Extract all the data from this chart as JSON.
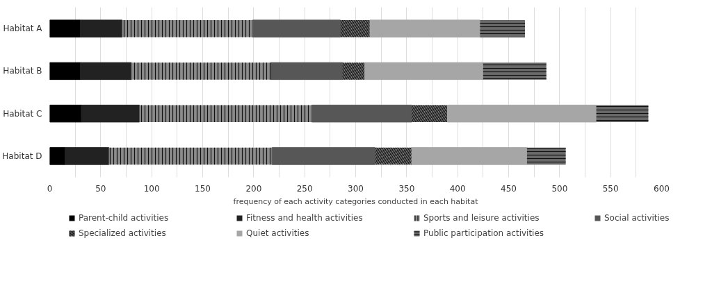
{
  "chart_data": {
    "type": "bar",
    "orientation": "horizontal",
    "stacked": true,
    "categories": [
      "Habitat A",
      "Habitat B",
      "Habitat C",
      "Habitat D"
    ],
    "xlabel": "frequency of each activity categories conducted in each habitat",
    "series": [
      {
        "name": "Parent-child activities",
        "color": "#000000",
        "values": [
          30,
          30,
          31,
          15
        ]
      },
      {
        "name": "Fitness and health activities",
        "color": "#222222",
        "values": [
          41,
          50,
          57,
          43
        ]
      },
      {
        "name": "Sports and leisure activities",
        "color": "#8c8c8c",
        "values": [
          128,
          137,
          169,
          160
        ]
      },
      {
        "name": "Social activities",
        "color": "#575757",
        "values": [
          86,
          70,
          98,
          101
        ]
      },
      {
        "name": "Specialized activities",
        "color": "#7a7a7a",
        "values": [
          29,
          22,
          35,
          36
        ]
      },
      {
        "name": "Quiet activities",
        "color": "#a6a6a6",
        "values": [
          108,
          116,
          146,
          113
        ]
      },
      {
        "name": "Public participation activities",
        "color": "#6a6a6a",
        "values": [
          44,
          62,
          51,
          38
        ]
      }
    ],
    "xlim": [
      0,
      600
    ],
    "xticks": [
      0,
      {
        "value": 25,
        "label": null
      },
      50,
      {
        "value": 75,
        "label": null
      },
      100,
      {
        "value": 125,
        "label": null
      },
      150,
      {
        "value": 175,
        "label": null
      },
      200,
      {
        "value": 225,
        "label": null
      },
      250,
      {
        "value": 275,
        "label": null
      },
      300,
      {
        "value": 325,
        "label": null
      },
      350,
      {
        "value": 375,
        "label": null
      },
      400,
      {
        "value": 425,
        "label": null
      },
      450,
      {
        "value": 475,
        "label": null
      },
      500,
      {
        "value": 525,
        "label": null
      },
      550,
      {
        "value": 575,
        "label": null
      },
      600
    ],
    "grid": "x",
    "legend": "bottom"
  }
}
